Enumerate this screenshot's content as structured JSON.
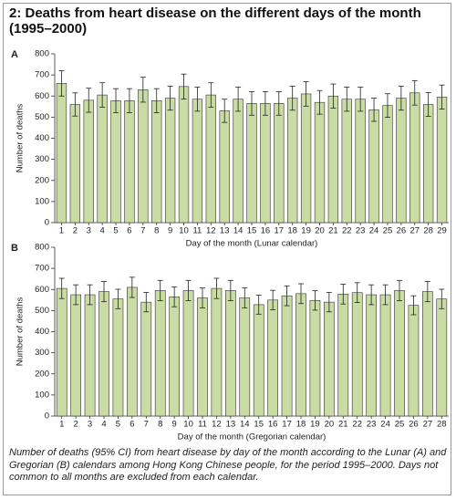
{
  "title": "2: Deaths from heart disease on the different days of the month (1995–2000)",
  "caption": "Number of deaths (95% CI) from heart disease by day of the month according to the Lunar (A) and Gregorian (B) calendars among Hong Kong Chinese people, for the period 1995–2000. Days not common to all months are excluded from each calendar.",
  "chart_data": [
    {
      "type": "bar",
      "panel": "A",
      "ylabel": "Number of deaths",
      "xlabel": "Day of the month (Lunar calendar)",
      "categories": [
        "1",
        "2",
        "3",
        "4",
        "5",
        "6",
        "7",
        "8",
        "9",
        "10",
        "11",
        "12",
        "13",
        "14",
        "15",
        "16",
        "17",
        "18",
        "19",
        "20",
        "21",
        "22",
        "23",
        "24",
        "25",
        "26",
        "27",
        "28",
        "29"
      ],
      "values": [
        660,
        560,
        580,
        605,
        578,
        578,
        630,
        578,
        590,
        645,
        585,
        605,
        530,
        585,
        565,
        565,
        565,
        590,
        610,
        570,
        600,
        585,
        585,
        535,
        555,
        590,
        615,
        560,
        595
      ],
      "errors": [
        60,
        55,
        57,
        58,
        57,
        57,
        59,
        57,
        57,
        59,
        57,
        58,
        55,
        57,
        56,
        56,
        56,
        57,
        58,
        56,
        57,
        57,
        57,
        55,
        56,
        57,
        58,
        56,
        57
      ],
      "color": "#c8dca4",
      "edge": "#333333",
      "ylim": [
        0,
        800
      ],
      "yticks": [
        0,
        100,
        200,
        300,
        400,
        500,
        600,
        700,
        800
      ]
    },
    {
      "type": "bar",
      "panel": "B",
      "ylabel": "Number of deaths",
      "xlabel": "Day of the month (Gregorian calendar)",
      "categories": [
        "1",
        "2",
        "3",
        "4",
        "5",
        "6",
        "7",
        "8",
        "9",
        "10",
        "11",
        "12",
        "13",
        "14",
        "15",
        "16",
        "17",
        "18",
        "19",
        "20",
        "21",
        "22",
        "23",
        "24",
        "25",
        "26",
        "27",
        "28"
      ],
      "values": [
        605,
        575,
        575,
        590,
        555,
        610,
        540,
        595,
        565,
        595,
        560,
        605,
        595,
        560,
        528,
        550,
        570,
        580,
        548,
        540,
        578,
        585,
        575,
        575,
        595,
        525,
        590,
        555
      ],
      "errors": [
        48,
        47,
        47,
        48,
        46,
        48,
        46,
        48,
        47,
        48,
        47,
        48,
        48,
        47,
        45,
        46,
        47,
        47,
        46,
        46,
        47,
        47,
        47,
        47,
        48,
        45,
        48,
        46
      ],
      "color": "#c8dca4",
      "edge": "#333333",
      "ylim": [
        0,
        800
      ],
      "yticks": [
        0,
        100,
        200,
        300,
        400,
        500,
        600,
        700,
        800
      ]
    }
  ]
}
